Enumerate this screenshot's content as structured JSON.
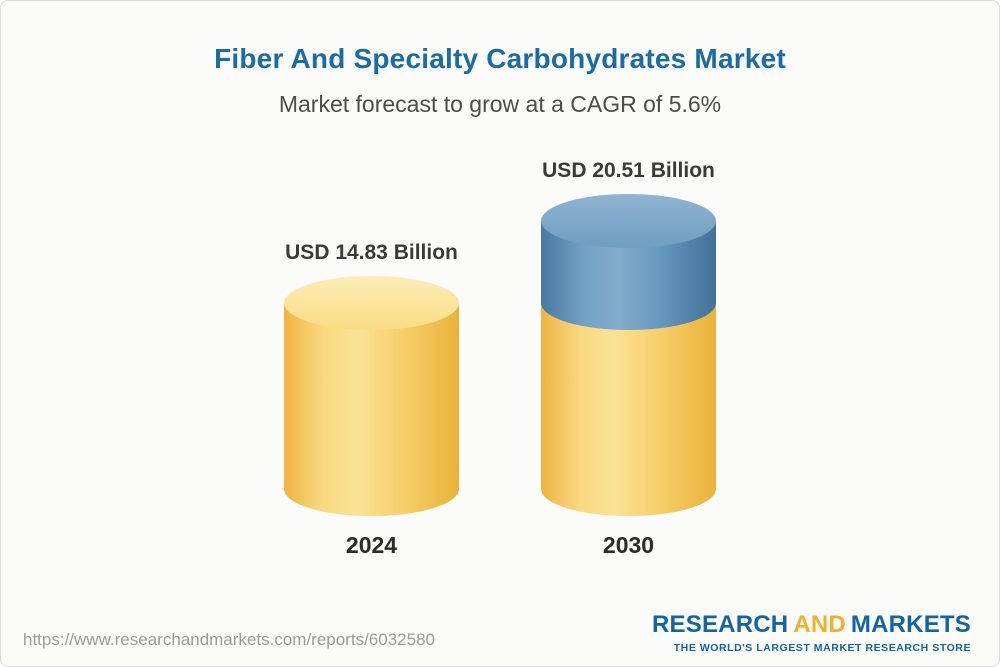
{
  "chart_data": {
    "type": "bar",
    "style": "cylinder-3d",
    "title": "Fiber And Specialty Carbohydrates Market",
    "subtitle": "Market forecast to grow at a CAGR of 5.6%",
    "cagr_pct": 5.6,
    "unit": "USD Billion",
    "categories": [
      "2024",
      "2030"
    ],
    "values": [
      14.83,
      20.51
    ],
    "bars": [
      {
        "category": "2024",
        "value": 14.83,
        "value_label": "USD 14.83 Billion",
        "segments": [
          {
            "color_key": "base",
            "value": 14.83
          }
        ]
      },
      {
        "category": "2030",
        "value": 20.51,
        "value_label": "USD 20.51 Billion",
        "segments": [
          {
            "color_key": "growth",
            "value": 5.68
          },
          {
            "color_key": "base",
            "value": 14.83
          }
        ]
      }
    ],
    "colors": {
      "base": "#f6c95f",
      "growth": "#5d8fb6"
    },
    "axes": {
      "x_labels": [
        "2024",
        "2030"
      ],
      "y_axis_visible": false,
      "gridlines": false
    },
    "legend_position": "none"
  },
  "footer": {
    "url": "https://www.researchandmarkets.com/reports/6032580",
    "logo": {
      "word1": "RESEARCH",
      "word2": "AND",
      "word3": "MARKETS",
      "tagline": "THE WORLD'S LARGEST MARKET RESEARCH STORE"
    }
  }
}
